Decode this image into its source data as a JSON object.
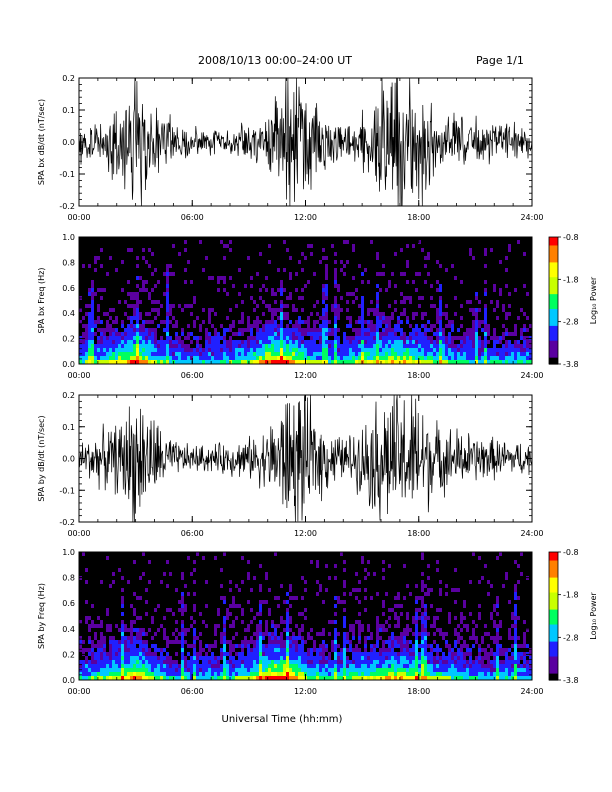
{
  "header": {
    "title": "2008/10/13  00:00–24:00 UT",
    "page": "Page 1/1"
  },
  "x_axis": {
    "label": "Universal Time (hh:mm)",
    "ticks": [
      "00:00",
      "06:00",
      "12:00",
      "18:00",
      "24:00"
    ],
    "range_hours": [
      0,
      24
    ]
  },
  "colorbar": {
    "title": "Log₁₀ Power",
    "ticks": [
      "-0.8",
      "-1.8",
      "-2.8",
      "-3.8"
    ],
    "range": [
      -3.8,
      -0.8
    ],
    "colors": [
      "#000000",
      "#5a00a0",
      "#2020ff",
      "#00c8ff",
      "#00ff60",
      "#c8ff00",
      "#ffff00",
      "#ff8000",
      "#ff0000"
    ]
  },
  "panels": [
    {
      "ylabel": "SPA bx dB/dt (nT/sec)",
      "yticks": [
        "0.2",
        "0.1",
        "0.0",
        "-0.1",
        "-0.2"
      ],
      "kind": "line"
    },
    {
      "ylabel": "SPA bx Freq (Hz)",
      "yticks": [
        "1.0",
        "0.8",
        "0.6",
        "0.4",
        "0.2",
        "0.0"
      ],
      "kind": "spectrogram"
    },
    {
      "ylabel": "SPA by dB/dt (nT/sec)",
      "yticks": [
        "0.2",
        "0.1",
        "0.0",
        "-0.1",
        "-0.2"
      ],
      "kind": "line"
    },
    {
      "ylabel": "SPA by Freq (Hz)",
      "yticks": [
        "1.0",
        "0.8",
        "0.6",
        "0.4",
        "0.2",
        "0.0"
      ],
      "kind": "spectrogram"
    }
  ],
  "chart_data": [
    {
      "type": "line",
      "ylabel": "SPA bx dB/dt (nT/sec)",
      "xlabel": "Universal Time (hh:mm)",
      "x_range_hours": [
        0,
        24
      ],
      "ylim": [
        -0.2,
        0.2
      ],
      "envelope": {
        "x_hours": [
          0,
          1,
          2,
          3,
          4,
          5,
          6,
          7,
          8,
          9,
          10,
          11,
          12,
          13,
          14,
          15,
          16,
          17,
          18,
          19,
          20,
          21,
          22,
          23,
          24
        ],
        "amplitude": [
          0.07,
          0.09,
          0.12,
          0.2,
          0.14,
          0.06,
          0.04,
          0.04,
          0.05,
          0.06,
          0.08,
          0.2,
          0.2,
          0.1,
          0.05,
          0.09,
          0.2,
          0.2,
          0.2,
          0.08,
          0.08,
          0.07,
          0.06,
          0.05,
          0.05
        ]
      }
    },
    {
      "type": "heatmap",
      "ylabel": "SPA bx Freq (Hz)",
      "xlabel": "Universal Time (hh:mm)",
      "x_range_hours": [
        0,
        24
      ],
      "ylim": [
        0.0,
        1.0
      ],
      "zlim": [
        -3.8,
        -0.8
      ],
      "activity": {
        "x_hours": [
          0,
          1,
          2,
          3,
          4,
          5,
          6,
          7,
          8,
          9,
          10,
          11,
          12,
          13,
          14,
          15,
          16,
          17,
          18,
          19,
          20,
          21,
          22,
          23,
          24
        ],
        "level": [
          0.35,
          0.4,
          0.55,
          0.75,
          0.4,
          0.3,
          0.25,
          0.3,
          0.35,
          0.45,
          0.7,
          0.75,
          0.45,
          0.35,
          0.35,
          0.5,
          0.55,
          0.6,
          0.5,
          0.4,
          0.35,
          0.3,
          0.3,
          0.3,
          0.3
        ]
      }
    },
    {
      "type": "line",
      "ylabel": "SPA by dB/dt (nT/sec)",
      "xlabel": "Universal Time (hh:mm)",
      "x_range_hours": [
        0,
        24
      ],
      "ylim": [
        -0.2,
        0.2
      ],
      "envelope": {
        "x_hours": [
          0,
          1,
          2,
          3,
          4,
          5,
          6,
          7,
          8,
          9,
          10,
          11,
          12,
          13,
          14,
          15,
          16,
          17,
          18,
          19,
          20,
          21,
          22,
          23,
          24
        ],
        "amplitude": [
          0.05,
          0.08,
          0.1,
          0.2,
          0.12,
          0.05,
          0.04,
          0.04,
          0.05,
          0.06,
          0.09,
          0.2,
          0.2,
          0.1,
          0.06,
          0.1,
          0.2,
          0.2,
          0.2,
          0.1,
          0.09,
          0.07,
          0.06,
          0.05,
          0.05
        ]
      }
    },
    {
      "type": "heatmap",
      "ylabel": "SPA by Freq (Hz)",
      "xlabel": "Universal Time (hh:mm)",
      "x_range_hours": [
        0,
        24
      ],
      "ylim": [
        0.0,
        1.0
      ],
      "zlim": [
        -3.8,
        -0.8
      ],
      "activity": {
        "x_hours": [
          0,
          1,
          2,
          3,
          4,
          5,
          6,
          7,
          8,
          9,
          10,
          11,
          12,
          13,
          14,
          15,
          16,
          17,
          18,
          19,
          20,
          21,
          22,
          23,
          24
        ],
        "level": [
          0.35,
          0.4,
          0.5,
          0.7,
          0.4,
          0.3,
          0.25,
          0.3,
          0.35,
          0.45,
          0.75,
          0.8,
          0.45,
          0.35,
          0.35,
          0.5,
          0.55,
          0.6,
          0.5,
          0.4,
          0.35,
          0.3,
          0.3,
          0.3,
          0.3
        ]
      }
    }
  ]
}
